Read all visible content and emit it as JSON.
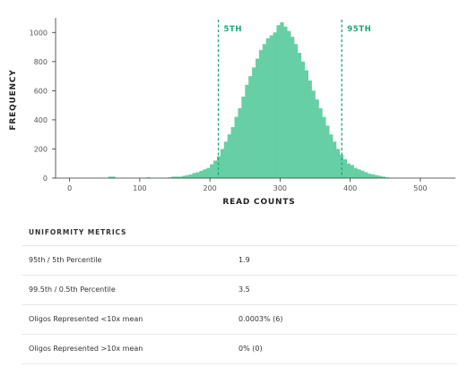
{
  "chart_data": {
    "type": "bar",
    "title": "",
    "xlabel": "READ COUNTS",
    "ylabel": "FREQUENCY",
    "xlim": [
      -20,
      550
    ],
    "ylim": [
      0,
      1100
    ],
    "bin_width": 5,
    "bins_start": 40,
    "x_ticks": [
      0,
      100,
      200,
      300,
      400,
      500
    ],
    "y_ticks": [
      0,
      200,
      400,
      600,
      800,
      1000
    ],
    "bar_color": "#66cfa5",
    "values": [
      0,
      0,
      0,
      10,
      10,
      0,
      0,
      0,
      0,
      0,
      0,
      0,
      0,
      0,
      5,
      0,
      0,
      0,
      0,
      0,
      5,
      10,
      10,
      10,
      15,
      20,
      25,
      35,
      40,
      50,
      60,
      70,
      95,
      120,
      150,
      200,
      250,
      300,
      350,
      420,
      480,
      560,
      640,
      700,
      760,
      820,
      880,
      920,
      960,
      980,
      1000,
      1050,
      1070,
      1040,
      1010,
      970,
      920,
      860,
      800,
      740,
      670,
      600,
      540,
      480,
      420,
      360,
      300,
      250,
      200,
      160,
      130,
      100,
      90,
      70,
      60,
      50,
      40,
      30,
      25,
      20,
      15,
      10,
      5,
      0,
      0
    ],
    "annotations": [
      {
        "label": "5TH",
        "x": 212
      },
      {
        "label": "95TH",
        "x": 388
      }
    ],
    "annotation_color": "#1aa874",
    "grid": false
  },
  "metrics": {
    "title": "UNIFORMITY METRICS",
    "rows": [
      {
        "name": "95th / 5th Percentile",
        "value": "1.9"
      },
      {
        "name": "99.5th / 0.5th Percentile",
        "value": "3.5"
      },
      {
        "name": "Oligos Represented <10x mean",
        "value": "0.0003% (6)"
      },
      {
        "name": "Oligos Represented >10x mean",
        "value": "0% (0)"
      }
    ]
  }
}
